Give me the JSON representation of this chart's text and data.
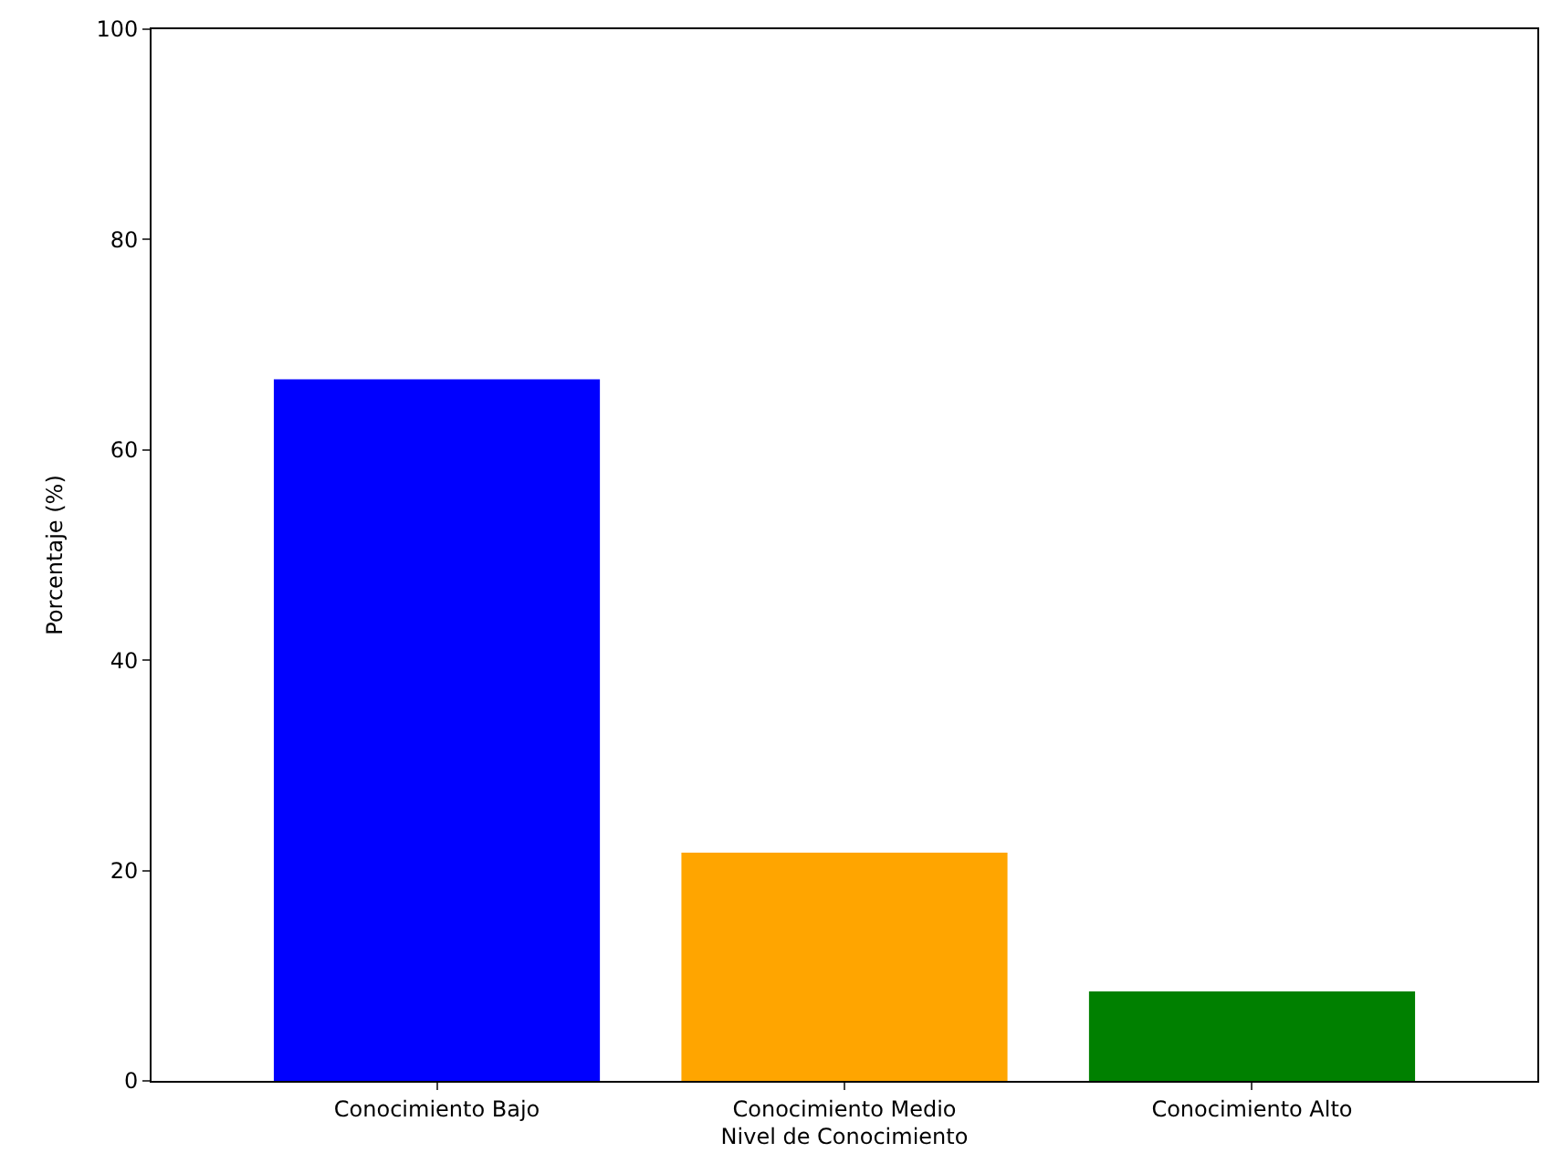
{
  "chart_data": {
    "type": "bar",
    "categories": [
      "Conocimiento Bajo",
      "Conocimiento Medio",
      "Conocimiento Alto"
    ],
    "values": [
      66.7,
      21.7,
      8.5
    ],
    "colors": [
      "#0000ff",
      "#ffa500",
      "#008000"
    ],
    "xlabel": "Nivel de Conocimiento",
    "ylabel": "Porcentaje (%)",
    "ylim": [
      0,
      100
    ],
    "yticks": [
      0,
      20,
      40,
      60,
      80,
      100
    ]
  }
}
